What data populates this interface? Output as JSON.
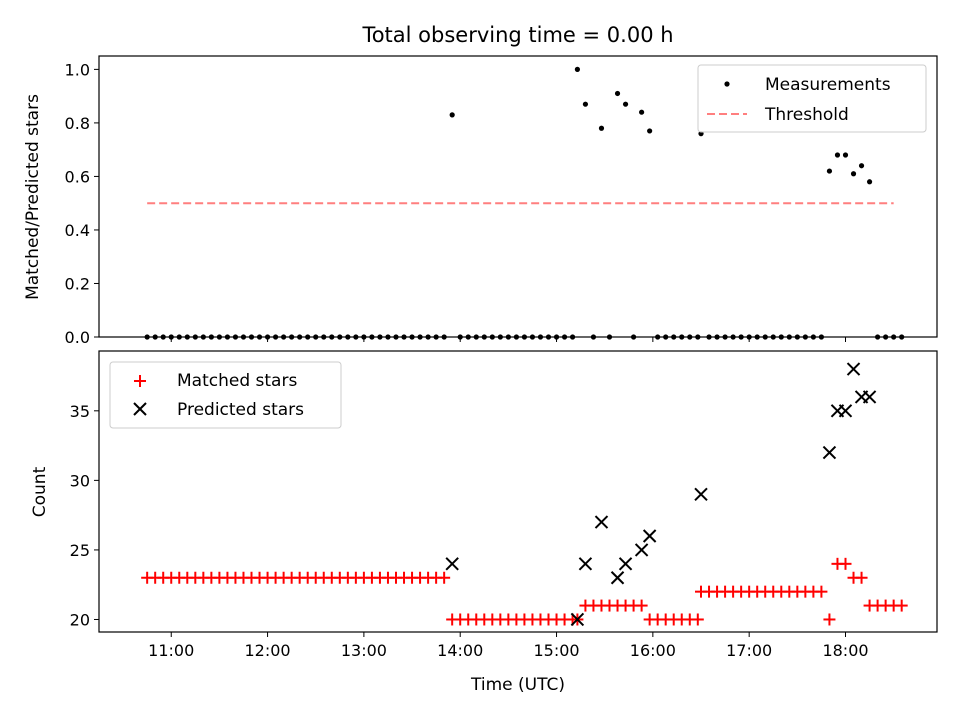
{
  "figure_title": "Total observing time = 0.00 h",
  "chart_data": [
    {
      "type": "scatter",
      "ylabel": "Matched/Predicted stars",
      "ylim": [
        0,
        1.05
      ],
      "yticks": [
        "0.0",
        "0.2",
        "0.4",
        "0.6",
        "0.8",
        "1.0"
      ],
      "ytick_values": [
        0,
        0.2,
        0.4,
        0.6,
        0.8,
        1.0
      ],
      "xlim": [
        "10:15",
        "18:57"
      ],
      "legend_position": "top-right",
      "threshold": {
        "name": "Threshold",
        "y": 0.5,
        "x_range": [
          "10:45",
          "18:30"
        ],
        "color": "#ff7f7f"
      },
      "series": [
        {
          "name": "Measurements",
          "color": "#000000",
          "points": [
            [
              "10:45",
              0
            ],
            [
              "10:50",
              0
            ],
            [
              "10:55",
              0
            ],
            [
              "11:00",
              0
            ],
            [
              "11:05",
              0
            ],
            [
              "11:10",
              0
            ],
            [
              "11:15",
              0
            ],
            [
              "11:20",
              0
            ],
            [
              "11:25",
              0
            ],
            [
              "11:30",
              0
            ],
            [
              "11:35",
              0
            ],
            [
              "11:40",
              0
            ],
            [
              "11:45",
              0
            ],
            [
              "11:50",
              0
            ],
            [
              "11:55",
              0
            ],
            [
              "12:00",
              0
            ],
            [
              "12:05",
              0
            ],
            [
              "12:10",
              0
            ],
            [
              "12:15",
              0
            ],
            [
              "12:20",
              0
            ],
            [
              "12:25",
              0
            ],
            [
              "12:30",
              0
            ],
            [
              "12:35",
              0
            ],
            [
              "12:40",
              0
            ],
            [
              "12:45",
              0
            ],
            [
              "12:50",
              0
            ],
            [
              "12:55",
              0
            ],
            [
              "13:00",
              0
            ],
            [
              "13:05",
              0
            ],
            [
              "13:10",
              0
            ],
            [
              "13:15",
              0
            ],
            [
              "13:20",
              0
            ],
            [
              "13:25",
              0
            ],
            [
              "13:30",
              0
            ],
            [
              "13:35",
              0
            ],
            [
              "13:40",
              0
            ],
            [
              "13:45",
              0
            ],
            [
              "13:50",
              0
            ],
            [
              "13:55",
              0.83
            ],
            [
              "14:00",
              0
            ],
            [
              "14:05",
              0
            ],
            [
              "14:10",
              0
            ],
            [
              "14:15",
              0
            ],
            [
              "14:20",
              0
            ],
            [
              "14:25",
              0
            ],
            [
              "14:30",
              0
            ],
            [
              "14:35",
              0
            ],
            [
              "14:40",
              0
            ],
            [
              "14:45",
              0
            ],
            [
              "14:50",
              0
            ],
            [
              "14:55",
              0
            ],
            [
              "15:00",
              0
            ],
            [
              "15:05",
              0
            ],
            [
              "15:10",
              0
            ],
            [
              "15:13",
              1.0
            ],
            [
              "15:18",
              0.87
            ],
            [
              "15:23",
              0
            ],
            [
              "15:28",
              0.78
            ],
            [
              "15:33",
              0
            ],
            [
              "15:38",
              0.91
            ],
            [
              "15:43",
              0.87
            ],
            [
              "15:48",
              0
            ],
            [
              "15:53",
              0.84
            ],
            [
              "15:58",
              0.77
            ],
            [
              "16:03",
              0
            ],
            [
              "16:08",
              0
            ],
            [
              "16:13",
              0
            ],
            [
              "16:18",
              0
            ],
            [
              "16:23",
              0
            ],
            [
              "16:28",
              0
            ],
            [
              "16:30",
              0.76
            ],
            [
              "16:35",
              0
            ],
            [
              "16:40",
              0
            ],
            [
              "16:45",
              0
            ],
            [
              "16:50",
              0
            ],
            [
              "16:55",
              0
            ],
            [
              "17:00",
              0
            ],
            [
              "17:05",
              0
            ],
            [
              "17:10",
              0
            ],
            [
              "17:15",
              0
            ],
            [
              "17:20",
              0
            ],
            [
              "17:25",
              0
            ],
            [
              "17:30",
              0
            ],
            [
              "17:35",
              0
            ],
            [
              "17:40",
              0
            ],
            [
              "17:45",
              0
            ],
            [
              "17:50",
              0.62
            ],
            [
              "17:55",
              0.68
            ],
            [
              "18:00",
              0.68
            ],
            [
              "18:05",
              0.61
            ],
            [
              "18:10",
              0.64
            ],
            [
              "18:15",
              0.58
            ],
            [
              "18:20",
              0
            ],
            [
              "18:25",
              0
            ],
            [
              "18:30",
              0
            ],
            [
              "18:35",
              0
            ]
          ]
        }
      ]
    },
    {
      "type": "scatter",
      "xlabel": "Time (UTC)",
      "ylabel": "Count",
      "ylim": [
        19.1,
        39.3
      ],
      "yticks": [
        "20",
        "25",
        "30",
        "35"
      ],
      "ytick_values": [
        20,
        25,
        30,
        35
      ],
      "xlim": [
        "10:15",
        "18:57"
      ],
      "xticks": [
        "11:00",
        "12:00",
        "13:00",
        "14:00",
        "15:00",
        "16:00",
        "17:00",
        "18:00"
      ],
      "legend_position": "top-left",
      "series": [
        {
          "name": "Matched stars",
          "marker": "plus",
          "color": "#ff0000",
          "points": [
            [
              "10:45",
              23
            ],
            [
              "10:50",
              23
            ],
            [
              "10:55",
              23
            ],
            [
              "11:00",
              23
            ],
            [
              "11:05",
              23
            ],
            [
              "11:10",
              23
            ],
            [
              "11:15",
              23
            ],
            [
              "11:20",
              23
            ],
            [
              "11:25",
              23
            ],
            [
              "11:30",
              23
            ],
            [
              "11:35",
              23
            ],
            [
              "11:40",
              23
            ],
            [
              "11:45",
              23
            ],
            [
              "11:50",
              23
            ],
            [
              "11:55",
              23
            ],
            [
              "12:00",
              23
            ],
            [
              "12:05",
              23
            ],
            [
              "12:10",
              23
            ],
            [
              "12:15",
              23
            ],
            [
              "12:20",
              23
            ],
            [
              "12:25",
              23
            ],
            [
              "12:30",
              23
            ],
            [
              "12:35",
              23
            ],
            [
              "12:40",
              23
            ],
            [
              "12:45",
              23
            ],
            [
              "12:50",
              23
            ],
            [
              "12:55",
              23
            ],
            [
              "13:00",
              23
            ],
            [
              "13:05",
              23
            ],
            [
              "13:10",
              23
            ],
            [
              "13:15",
              23
            ],
            [
              "13:20",
              23
            ],
            [
              "13:25",
              23
            ],
            [
              "13:30",
              23
            ],
            [
              "13:35",
              23
            ],
            [
              "13:40",
              23
            ],
            [
              "13:45",
              23
            ],
            [
              "13:50",
              23
            ],
            [
              "13:55",
              20
            ],
            [
              "14:00",
              20
            ],
            [
              "14:05",
              20
            ],
            [
              "14:10",
              20
            ],
            [
              "14:15",
              20
            ],
            [
              "14:20",
              20
            ],
            [
              "14:25",
              20
            ],
            [
              "14:30",
              20
            ],
            [
              "14:35",
              20
            ],
            [
              "14:40",
              20
            ],
            [
              "14:45",
              20
            ],
            [
              "14:50",
              20
            ],
            [
              "14:55",
              20
            ],
            [
              "15:00",
              20
            ],
            [
              "15:05",
              20
            ],
            [
              "15:10",
              20
            ],
            [
              "15:13",
              20
            ],
            [
              "15:18",
              21
            ],
            [
              "15:23",
              21
            ],
            [
              "15:28",
              21
            ],
            [
              "15:33",
              21
            ],
            [
              "15:38",
              21
            ],
            [
              "15:43",
              21
            ],
            [
              "15:48",
              21
            ],
            [
              "15:53",
              21
            ],
            [
              "15:58",
              20
            ],
            [
              "16:03",
              20
            ],
            [
              "16:08",
              20
            ],
            [
              "16:13",
              20
            ],
            [
              "16:18",
              20
            ],
            [
              "16:23",
              20
            ],
            [
              "16:28",
              20
            ],
            [
              "16:30",
              22
            ],
            [
              "16:35",
              22
            ],
            [
              "16:40",
              22
            ],
            [
              "16:45",
              22
            ],
            [
              "16:50",
              22
            ],
            [
              "16:55",
              22
            ],
            [
              "17:00",
              22
            ],
            [
              "17:05",
              22
            ],
            [
              "17:10",
              22
            ],
            [
              "17:15",
              22
            ],
            [
              "17:20",
              22
            ],
            [
              "17:25",
              22
            ],
            [
              "17:30",
              22
            ],
            [
              "17:35",
              22
            ],
            [
              "17:40",
              22
            ],
            [
              "17:45",
              22
            ],
            [
              "17:50",
              20
            ],
            [
              "17:55",
              24
            ],
            [
              "18:00",
              24
            ],
            [
              "18:05",
              23
            ],
            [
              "18:10",
              23
            ],
            [
              "18:15",
              21
            ],
            [
              "18:20",
              21
            ],
            [
              "18:25",
              21
            ],
            [
              "18:30",
              21
            ],
            [
              "18:35",
              21
            ]
          ]
        },
        {
          "name": "Predicted stars",
          "marker": "x",
          "color": "#000000",
          "points": [
            [
              "13:55",
              24
            ],
            [
              "15:13",
              20
            ],
            [
              "15:18",
              24
            ],
            [
              "15:28",
              27
            ],
            [
              "15:38",
              23
            ],
            [
              "15:43",
              24
            ],
            [
              "15:53",
              25
            ],
            [
              "15:58",
              26
            ],
            [
              "16:30",
              29
            ],
            [
              "17:50",
              32
            ],
            [
              "17:55",
              35
            ],
            [
              "18:00",
              35
            ],
            [
              "18:05",
              38
            ],
            [
              "18:10",
              36
            ],
            [
              "18:15",
              36
            ]
          ]
        }
      ]
    }
  ]
}
